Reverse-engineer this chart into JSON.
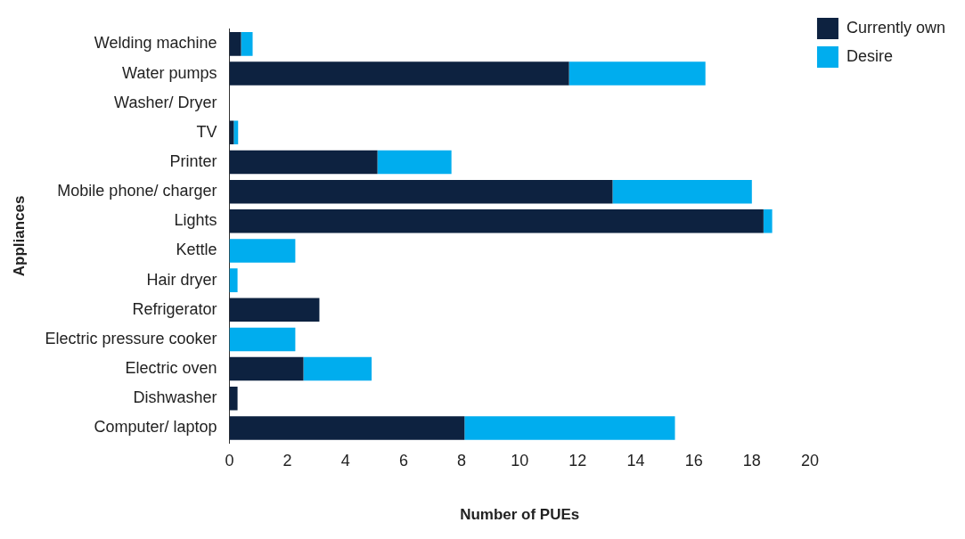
{
  "chart_data": {
    "type": "bar",
    "orientation": "horizontal",
    "stacked": true,
    "xlabel": "Number of PUEs",
    "ylabel": "Appliances",
    "categories": [
      "Welding machine",
      "Water pumps",
      "Washer/ Dryer",
      "TV",
      "Printer",
      "Mobile phone/ charger",
      "Lights",
      "Kettle",
      "Hair dryer",
      "Refrigerator",
      "Electric pressure cooker",
      "Electric oven",
      "Dishwasher",
      "Computer/ laptop"
    ],
    "series": [
      {
        "name": "Currently own",
        "color": "#0d2240",
        "values": [
          0.4,
          11.7,
          0,
          0.15,
          5.1,
          13.2,
          18.4,
          0,
          0,
          3.1,
          0,
          2.55,
          0.28,
          8.1
        ]
      },
      {
        "name": "Desire",
        "color": "#00adee",
        "values": [
          0.4,
          4.7,
          0,
          0.15,
          2.55,
          4.8,
          0.3,
          2.27,
          0.28,
          0,
          2.27,
          2.35,
          0,
          7.25
        ]
      }
    ],
    "xlim": [
      0,
      20
    ],
    "xticks": [
      0,
      2,
      4,
      6,
      8,
      10,
      12,
      14,
      16,
      18,
      20
    ],
    "grid": false,
    "legend": "top right"
  }
}
